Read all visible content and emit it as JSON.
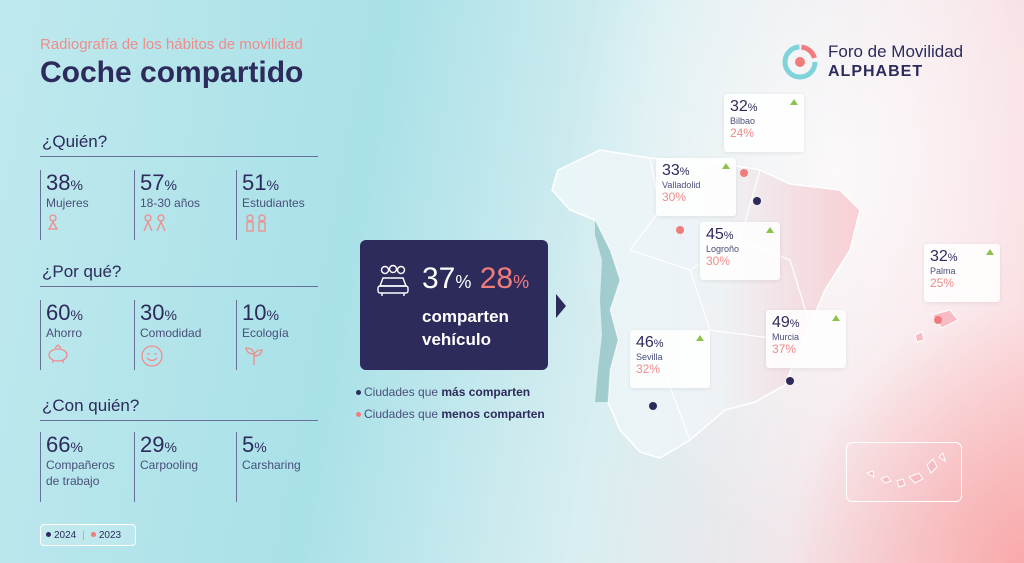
{
  "header": {
    "kicker": "Radiografía de los hábitos de movilidad",
    "title": "Coche compartido"
  },
  "logo": {
    "line1": "Foro de Movilidad",
    "line2": "ALPHABET"
  },
  "sections": [
    {
      "title": "¿Quién?",
      "stats": [
        {
          "value": "38",
          "label": "Mujeres",
          "icon": "woman-icon"
        },
        {
          "value": "57",
          "label": "18-30 años",
          "icon": "people-icon"
        },
        {
          "value": "51",
          "label": "Estudiantes",
          "icon": "students-icon"
        }
      ]
    },
    {
      "title": "¿Por qué?",
      "stats": [
        {
          "value": "60",
          "label": "Ahorro",
          "icon": "piggy-bank-icon"
        },
        {
          "value": "30",
          "label": "Comodidad",
          "icon": "smiley-icon"
        },
        {
          "value": "10",
          "label": "Ecología",
          "icon": "sprout-icon"
        }
      ]
    },
    {
      "title": "¿Con quién?",
      "stats": [
        {
          "value": "66",
          "label": "Compañeros de trabajo"
        },
        {
          "value": "29",
          "label": "Carpooling"
        },
        {
          "value": "5",
          "label": "Carsharing"
        }
      ]
    }
  ],
  "pct": "%",
  "year_legend": {
    "y2024": "2024",
    "y2023": "2023",
    "c2024": "#2d2a5c",
    "c2023": "#f07c7c"
  },
  "hero": {
    "v2024": "37",
    "v2023": "28",
    "line1": "comparten",
    "line2": "vehículo"
  },
  "city_legend": {
    "more_prefix": "Ciudades que ",
    "more_bold": "más comparten",
    "less_prefix": "Ciudades que ",
    "less_bold": "menos comparten"
  },
  "cities": [
    {
      "name": "Bilbao",
      "v2024": "32",
      "v2023": "24"
    },
    {
      "name": "Valladolid",
      "v2024": "33",
      "v2023": "30"
    },
    {
      "name": "Logroño",
      "v2024": "45",
      "v2023": "30"
    },
    {
      "name": "Palma",
      "v2024": "32",
      "v2023": "25"
    },
    {
      "name": "Murcia",
      "v2024": "49",
      "v2023": "37"
    },
    {
      "name": "Sevilla",
      "v2024": "46",
      "v2023": "32"
    }
  ],
  "colors": {
    "navy": "#2d2a5c",
    "coral": "#f07c7c",
    "green": "#8bc34a"
  }
}
